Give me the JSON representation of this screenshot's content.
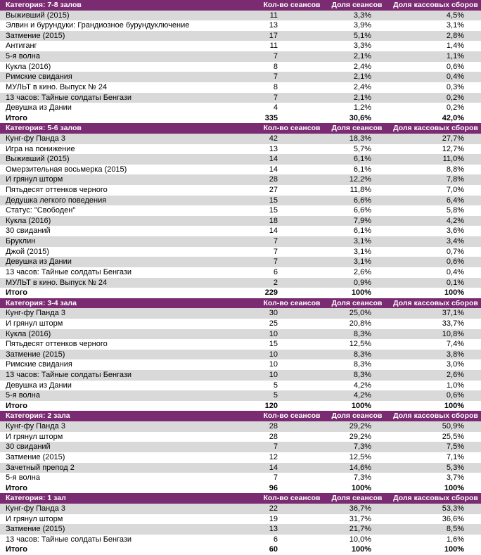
{
  "sections": [
    {
      "title": "Категория: 7-8 залов",
      "columns": [
        "Кол-во сеансов",
        "Доля сеансов",
        "Доля кассовых сборов"
      ],
      "rows": [
        [
          "Выживший (2015)",
          11,
          "3,3%",
          "4,5%"
        ],
        [
          "Элвин и бурундуки: Грандиозное бурундуключение",
          13,
          "3,9%",
          "3,1%"
        ],
        [
          "Затмение (2015)",
          17,
          "5,1%",
          "2,8%"
        ],
        [
          "Антиганг",
          11,
          "3,3%",
          "1,4%"
        ],
        [
          "5-я волна",
          7,
          "2,1%",
          "1,1%"
        ],
        [
          "Кукла (2016)",
          8,
          "2,4%",
          "0,6%"
        ],
        [
          "Римские свидания",
          7,
          "2,1%",
          "0,4%"
        ],
        [
          "МУЛЬТ в кино. Выпуск № 24",
          8,
          "2,4%",
          "0,3%"
        ],
        [
          "13 часов: Тайные солдаты Бенгази",
          7,
          "2,1%",
          "0,2%"
        ],
        [
          "Девушка из Дании",
          4,
          "1,2%",
          "0,2%"
        ]
      ],
      "total": [
        "Итого",
        335,
        "30,6%",
        "42,0%"
      ]
    },
    {
      "title": "Категория: 5-6 залов",
      "columns": [
        "Кол-во сеансов",
        "Доля сеансов",
        "Доля кассовых сборов"
      ],
      "rows": [
        [
          "Кунг-фу Панда 3",
          42,
          "18,3%",
          "27,7%"
        ],
        [
          "Игра на понижение",
          13,
          "5,7%",
          "12,7%"
        ],
        [
          "Выживший (2015)",
          14,
          "6,1%",
          "11,0%"
        ],
        [
          "Омерзительная восьмерка (2015)",
          14,
          "6,1%",
          "8,8%"
        ],
        [
          "И грянул шторм",
          28,
          "12,2%",
          "7,8%"
        ],
        [
          "Пятьдесят оттенков черного",
          27,
          "11,8%",
          "7,0%"
        ],
        [
          "Дедушка легкого поведения",
          15,
          "6,6%",
          "6,4%"
        ],
        [
          "Статус: \"Свободен\"",
          15,
          "6,6%",
          "5,8%"
        ],
        [
          "Кукла (2016)",
          18,
          "7,9%",
          "4,2%"
        ],
        [
          "30 свиданий",
          14,
          "6,1%",
          "3,6%"
        ],
        [
          "Бруклин",
          7,
          "3,1%",
          "3,4%"
        ],
        [
          "Джой (2015)",
          7,
          "3,1%",
          "0,7%"
        ],
        [
          "Девушка из Дании",
          7,
          "3,1%",
          "0,6%"
        ],
        [
          "13 часов: Тайные солдаты Бенгази",
          6,
          "2,6%",
          "0,4%"
        ],
        [
          "МУЛЬТ в кино. Выпуск № 24",
          2,
          "0,9%",
          "0,1%"
        ]
      ],
      "total": [
        "Итого",
        229,
        "100%",
        "100%"
      ]
    },
    {
      "title": "Категория: 3-4 зала",
      "columns": [
        "Кол-во сеансов",
        "Доля сеансов",
        "Доля кассовых сборов"
      ],
      "rows": [
        [
          "Кунг-фу Панда 3",
          30,
          "25,0%",
          "37,1%"
        ],
        [
          "И грянул шторм",
          25,
          "20,8%",
          "33,7%"
        ],
        [
          "Кукла (2016)",
          10,
          "8,3%",
          "10,8%"
        ],
        [
          "Пятьдесят оттенков черного",
          15,
          "12,5%",
          "7,4%"
        ],
        [
          "Затмение (2015)",
          10,
          "8,3%",
          "3,8%"
        ],
        [
          "Римские свидания",
          10,
          "8,3%",
          "3,0%"
        ],
        [
          "13 часов: Тайные солдаты Бенгази",
          10,
          "8,3%",
          "2,6%"
        ],
        [
          "Девушка из Дании",
          5,
          "4,2%",
          "1,0%"
        ],
        [
          "5-я волна",
          5,
          "4,2%",
          "0,6%"
        ]
      ],
      "total": [
        "Итого",
        120,
        "100%",
        "100%"
      ]
    },
    {
      "title": "Категория: 2 зала",
      "columns": [
        "Кол-во сеансов",
        "Доля сеансов",
        "Доля кассовых сборов"
      ],
      "rows": [
        [
          "Кунг-фу Панда 3",
          28,
          "29,2%",
          "50,9%"
        ],
        [
          "И грянул шторм",
          28,
          "29,2%",
          "25,5%"
        ],
        [
          "30 свиданий",
          7,
          "7,3%",
          "7,5%"
        ],
        [
          "Затмение (2015)",
          12,
          "12,5%",
          "7,1%"
        ],
        [
          "Зачетный препод 2",
          14,
          "14,6%",
          "5,3%"
        ],
        [
          "5-я волна",
          7,
          "7,3%",
          "3,7%"
        ]
      ],
      "total": [
        "Итого",
        96,
        "100%",
        "100%"
      ]
    },
    {
      "title": "Категория: 1 зал",
      "columns": [
        "Кол-во сеансов",
        "Доля сеансов",
        "Доля кассовых сборов"
      ],
      "rows": [
        [
          "Кунг-фу Панда 3",
          22,
          "36,7%",
          "53,3%"
        ],
        [
          "И грянул шторм",
          19,
          "31,7%",
          "36,6%"
        ],
        [
          "Затмение (2015)",
          13,
          "21,7%",
          "8,5%"
        ],
        [
          "13 часов: Тайные солдаты Бенгази",
          6,
          "10,0%",
          "1,6%"
        ]
      ],
      "total": [
        "Итого",
        60,
        "100%",
        "100%"
      ]
    }
  ]
}
